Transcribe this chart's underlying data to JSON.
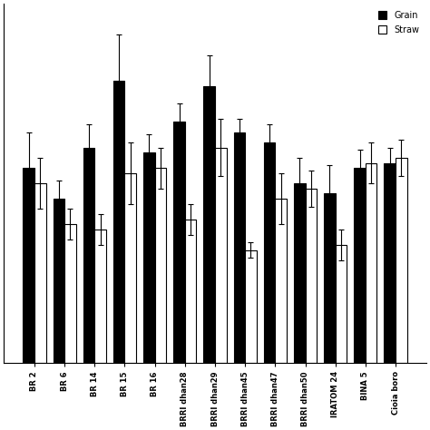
{
  "categories": [
    "BR 2",
    "BR 6",
    "BR 14",
    "BR 15",
    "BR 16",
    "BRRI dhan28",
    "BRRI dhan29",
    "BRRI dhan45",
    "BRRI dhan47",
    "BRRI dhan50",
    "IRATOM 24",
    "BINA 5",
    "Cioia boro"
  ],
  "grain_values": [
    3.8,
    3.2,
    4.2,
    5.5,
    4.1,
    4.7,
    5.4,
    4.5,
    4.3,
    3.5,
    3.3,
    3.8,
    3.9
  ],
  "straw_values": [
    3.5,
    2.7,
    2.6,
    3.7,
    3.8,
    2.8,
    4.2,
    2.2,
    3.2,
    3.4,
    2.3,
    3.9,
    4.0
  ],
  "grain_errors": [
    0.7,
    0.35,
    0.45,
    0.9,
    0.35,
    0.35,
    0.6,
    0.25,
    0.35,
    0.5,
    0.55,
    0.35,
    0.3
  ],
  "straw_errors": [
    0.5,
    0.3,
    0.3,
    0.6,
    0.4,
    0.3,
    0.55,
    0.15,
    0.5,
    0.35,
    0.3,
    0.4,
    0.35
  ],
  "grain_color": "#000000",
  "straw_color": "#ffffff",
  "bar_edgecolor": "#000000",
  "bar_width": 0.38,
  "legend_labels": [
    "Grain",
    "Straw"
  ],
  "background_color": "#ffffff",
  "ylim": [
    0,
    7.0
  ],
  "figsize": [
    4.74,
    4.74
  ],
  "dpi": 100
}
